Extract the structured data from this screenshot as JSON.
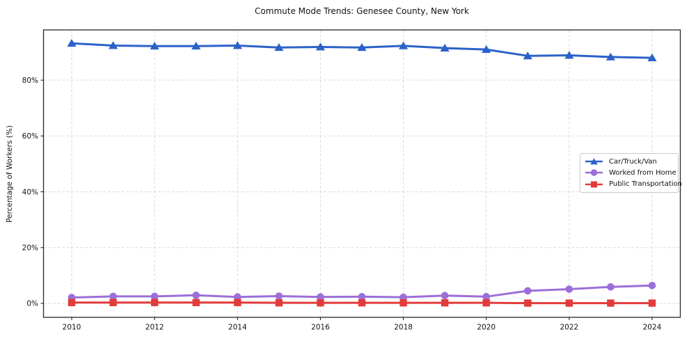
{
  "title": "Commute Mode Trends: Genesee County, New York",
  "chart_data": {
    "type": "line",
    "title": "Commute Mode Trends: Genesee County, New York",
    "xlabel": "",
    "ylabel": "Percentage of Workers (%)",
    "grid": true,
    "grid_style": "dashed",
    "legend_position": "center-right",
    "x": [
      2010,
      2011,
      2012,
      2013,
      2014,
      2015,
      2016,
      2017,
      2018,
      2019,
      2020,
      2021,
      2022,
      2023,
      2024
    ],
    "xlim": [
      2009.32,
      2024.68
    ],
    "ylim": [
      -5,
      98
    ],
    "xticks": [
      {
        "v": 2010,
        "label": "2010"
      },
      {
        "v": 2012,
        "label": "2012"
      },
      {
        "v": 2014,
        "label": "2014"
      },
      {
        "v": 2016,
        "label": "2016"
      },
      {
        "v": 2018,
        "label": "2018"
      },
      {
        "v": 2020,
        "label": "2020"
      },
      {
        "v": 2022,
        "label": "2022"
      },
      {
        "v": 2024,
        "label": "2024"
      }
    ],
    "yticks": [
      {
        "v": 0,
        "label": "0%"
      },
      {
        "v": 20,
        "label": "20%"
      },
      {
        "v": 40,
        "label": "40%"
      },
      {
        "v": 60,
        "label": "60%"
      },
      {
        "v": 80,
        "label": "80%"
      }
    ],
    "series": [
      {
        "name": "Car/Truck/Van",
        "color": "#2b62c9",
        "marker": "triangle",
        "values": [
          93.2,
          92.4,
          92.2,
          92.2,
          92.4,
          91.7,
          91.9,
          91.7,
          92.3,
          91.5,
          91.0,
          88.7,
          88.9,
          88.3,
          88.0
        ]
      },
      {
        "name": "Worked from Home",
        "color": "#9b6fd8",
        "marker": "circle",
        "values": [
          2.1,
          2.5,
          2.5,
          2.9,
          2.3,
          2.6,
          2.3,
          2.4,
          2.2,
          2.8,
          2.4,
          4.5,
          5.1,
          5.9,
          6.4
        ]
      },
      {
        "name": "Public Transportation",
        "color": "#e23b3b",
        "marker": "square",
        "values": [
          0.3,
          0.3,
          0.3,
          0.3,
          0.3,
          0.2,
          0.2,
          0.2,
          0.2,
          0.2,
          0.2,
          0.1,
          0.1,
          0.1,
          0.1
        ]
      }
    ]
  }
}
